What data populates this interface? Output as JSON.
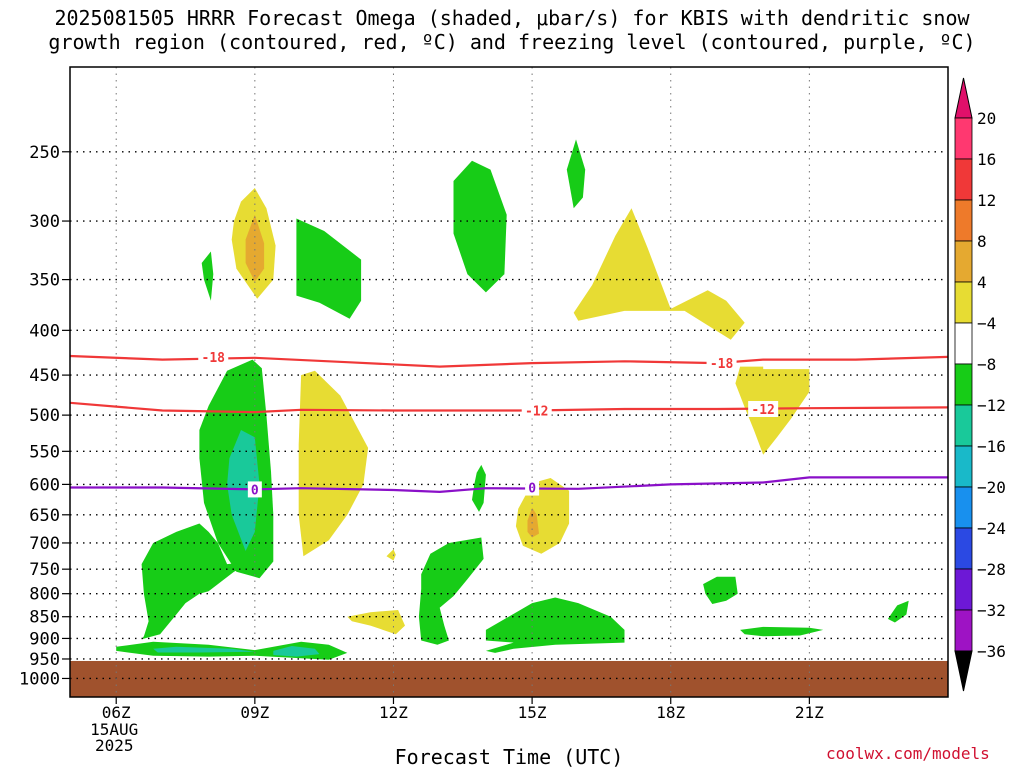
{
  "title": {
    "line1": "2025081505 HRRR Forecast Omega (shaded, μbar/s) for KBIS with dendritic snow",
    "line2": "growth region (contoured, red, ºC) and freezing level (contoured, purple, ºC)"
  },
  "credit": "coolwx.com/models",
  "chart_data": {
    "type": "heatmap",
    "xlabel": "Forecast Time (UTC)",
    "ylabel": "",
    "x_ticks": [
      "06Z",
      "09Z",
      "12Z",
      "15Z",
      "18Z",
      "21Z"
    ],
    "x_tick_hours": [
      6,
      9,
      12,
      15,
      18,
      21
    ],
    "x_date_lines": [
      "15AUG",
      "2025"
    ],
    "xlim_hours": [
      5,
      24
    ],
    "y_ticks": [
      250,
      300,
      350,
      400,
      450,
      500,
      550,
      600,
      650,
      700,
      750,
      800,
      850,
      900,
      950,
      1000
    ],
    "y_scale": "log",
    "ylim_hpa": [
      200,
      1050
    ],
    "grid": true,
    "ground_top_hpa": 955,
    "colorbar": {
      "labels": [
        "20",
        "16",
        "12",
        "8",
        "4",
        "−4",
        "−8",
        "−12",
        "−16",
        "−20",
        "−24",
        "−28",
        "−32",
        "−36"
      ],
      "colors": [
        "#ff3870",
        "#f03838",
        "#ee7a2a",
        "#e5a930",
        "#e7dc33",
        "#ffffff",
        "#17cc17",
        "#19c99a",
        "#19b9c9",
        "#1890ee",
        "#2b49e3",
        "#6d18d6",
        "#9e13c4",
        "#a8a8a8",
        "#000000"
      ],
      "top_arrow_color": "#e0106a",
      "bottom_arrow_color": "#000000"
    },
    "contours": [
      {
        "label": "-18",
        "color": "#f03838",
        "points": [
          [
            5.0,
            428
          ],
          [
            7.0,
            432
          ],
          [
            9.0,
            430
          ],
          [
            11.0,
            435
          ],
          [
            13.0,
            440
          ],
          [
            15.0,
            436
          ],
          [
            17.0,
            434
          ],
          [
            19.0,
            436
          ],
          [
            20.0,
            432
          ],
          [
            22.0,
            432
          ],
          [
            24.0,
            429
          ]
        ],
        "label_at": [
          [
            8.1,
            429
          ],
          [
            19.1,
            436
          ]
        ]
      },
      {
        "label": "-12",
        "color": "#f03838",
        "points": [
          [
            5.0,
            484
          ],
          [
            7.0,
            494
          ],
          [
            9.0,
            496
          ],
          [
            10.0,
            493
          ],
          [
            12.0,
            494
          ],
          [
            15.0,
            494
          ],
          [
            17.0,
            492
          ],
          [
            19.0,
            492
          ],
          [
            21.0,
            491
          ],
          [
            24.0,
            490
          ]
        ],
        "label_at": [
          [
            15.1,
            494
          ],
          [
            20.0,
            492
          ]
        ]
      },
      {
        "label": "0",
        "color": "#8a10c8",
        "points": [
          [
            5.0,
            605
          ],
          [
            7.0,
            605
          ],
          [
            9.0,
            608
          ],
          [
            10.0,
            606
          ],
          [
            12.0,
            609
          ],
          [
            13.0,
            612
          ],
          [
            14.0,
            606
          ],
          [
            16.0,
            607
          ],
          [
            18.0,
            600
          ],
          [
            20.0,
            597
          ],
          [
            21.0,
            589
          ],
          [
            24.0,
            589
          ]
        ],
        "label_at": [
          [
            9.0,
            608
          ],
          [
            15.0,
            605
          ]
        ]
      }
    ],
    "omega_regions": [
      {
        "value": 6,
        "points": [
          [
            8.55,
            300
          ],
          [
            8.7,
            285
          ],
          [
            9.0,
            275
          ],
          [
            9.25,
            290
          ],
          [
            9.45,
            320
          ],
          [
            9.4,
            350
          ],
          [
            9.05,
            368
          ],
          [
            8.6,
            340
          ],
          [
            8.5,
            315
          ]
        ]
      },
      {
        "value": 10,
        "points": [
          [
            8.8,
            315
          ],
          [
            9.0,
            295
          ],
          [
            9.2,
            318
          ],
          [
            9.2,
            340
          ],
          [
            9.0,
            352
          ],
          [
            8.8,
            335
          ]
        ]
      },
      {
        "value": -6,
        "points": [
          [
            7.85,
            335
          ],
          [
            8.05,
            325
          ],
          [
            8.1,
            345
          ],
          [
            8.05,
            370
          ],
          [
            7.9,
            350
          ]
        ]
      },
      {
        "value": -6,
        "points": [
          [
            9.9,
            298
          ],
          [
            10.5,
            308
          ],
          [
            11.3,
            332
          ],
          [
            11.3,
            370
          ],
          [
            11.05,
            388
          ],
          [
            10.4,
            372
          ],
          [
            9.9,
            365
          ],
          [
            9.9,
            330
          ]
        ]
      },
      {
        "value": -6,
        "points": [
          [
            13.3,
            270
          ],
          [
            13.7,
            256
          ],
          [
            14.1,
            262
          ],
          [
            14.45,
            295
          ],
          [
            14.4,
            345
          ],
          [
            14.0,
            362
          ],
          [
            13.6,
            345
          ],
          [
            13.3,
            310
          ]
        ]
      },
      {
        "value": -6,
        "points": [
          [
            15.75,
            262
          ],
          [
            15.95,
            242
          ],
          [
            16.15,
            262
          ],
          [
            16.1,
            282
          ],
          [
            15.9,
            290
          ]
        ]
      },
      {
        "value": 6,
        "points": [
          [
            16.3,
            355
          ],
          [
            16.8,
            312
          ],
          [
            17.15,
            290
          ],
          [
            17.5,
            322
          ],
          [
            18.0,
            378
          ],
          [
            18.8,
            360
          ],
          [
            19.2,
            370
          ],
          [
            19.6,
            392
          ],
          [
            19.3,
            410
          ],
          [
            18.3,
            380
          ],
          [
            17.0,
            380
          ],
          [
            16.0,
            390
          ],
          [
            15.9,
            382
          ]
        ]
      },
      {
        "value": -6,
        "points": [
          [
            6.55,
            902
          ],
          [
            6.95,
            890
          ],
          [
            7.3,
            845
          ],
          [
            7.5,
            820
          ],
          [
            7.8,
            800
          ],
          [
            8.0,
            795
          ],
          [
            8.2,
            780
          ],
          [
            8.55,
            755
          ],
          [
            9.0,
            735
          ],
          [
            8.4,
            740
          ],
          [
            8.2,
            700
          ],
          [
            8.0,
            680
          ],
          [
            7.8,
            665
          ],
          [
            7.3,
            680
          ],
          [
            6.8,
            700
          ],
          [
            6.55,
            740
          ],
          [
            6.6,
            800
          ],
          [
            6.7,
            860
          ],
          [
            6.6,
            895
          ]
        ]
      },
      {
        "value": -6,
        "points": [
          [
            7.8,
            520
          ],
          [
            8.0,
            488
          ],
          [
            8.4,
            445
          ],
          [
            8.95,
            432
          ],
          [
            9.15,
            442
          ],
          [
            9.25,
            500
          ],
          [
            9.35,
            580
          ],
          [
            9.4,
            650
          ],
          [
            9.4,
            735
          ],
          [
            9.1,
            768
          ],
          [
            8.6,
            755
          ],
          [
            8.2,
            700
          ],
          [
            7.9,
            630
          ],
          [
            7.8,
            560
          ]
        ]
      },
      {
        "value": -6,
        "points": [
          [
            6.0,
            920
          ],
          [
            6.8,
            908
          ],
          [
            8.0,
            915
          ],
          [
            9.0,
            928
          ],
          [
            10.0,
            908
          ],
          [
            10.6,
            915
          ],
          [
            11.0,
            935
          ],
          [
            10.6,
            952
          ],
          [
            9.0,
            942
          ],
          [
            8.0,
            944
          ],
          [
            6.8,
            942
          ],
          [
            6.0,
            930
          ]
        ]
      },
      {
        "value": -10,
        "points": [
          [
            8.45,
            560
          ],
          [
            8.7,
            520
          ],
          [
            9.0,
            530
          ],
          [
            9.1,
            600
          ],
          [
            9.0,
            680
          ],
          [
            8.8,
            715
          ],
          [
            8.5,
            650
          ],
          [
            8.4,
            600
          ]
        ]
      },
      {
        "value": -10,
        "points": [
          [
            6.8,
            925
          ],
          [
            7.3,
            920
          ],
          [
            8.5,
            925
          ],
          [
            9.0,
            932
          ],
          [
            7.8,
            934
          ],
          [
            6.9,
            934
          ]
        ]
      },
      {
        "value": -10,
        "points": [
          [
            9.4,
            930
          ],
          [
            9.8,
            918
          ],
          [
            10.3,
            925
          ],
          [
            10.4,
            938
          ],
          [
            9.9,
            944
          ],
          [
            9.4,
            940
          ]
        ]
      },
      {
        "value": 6,
        "points": [
          [
            9.95,
            540
          ],
          [
            10.0,
            450
          ],
          [
            10.3,
            445
          ],
          [
            10.85,
            475
          ],
          [
            11.45,
            545
          ],
          [
            11.35,
            600
          ],
          [
            11.0,
            650
          ],
          [
            10.6,
            695
          ],
          [
            10.05,
            725
          ],
          [
            9.95,
            650
          ]
        ]
      },
      {
        "value": 6,
        "points": [
          [
            11.0,
            850
          ],
          [
            11.5,
            840
          ],
          [
            12.1,
            835
          ],
          [
            12.25,
            870
          ],
          [
            12.05,
            890
          ],
          [
            11.5,
            870
          ],
          [
            11.1,
            860
          ]
        ]
      },
      {
        "value": 6,
        "points": [
          [
            11.9,
            720
          ],
          [
            12.0,
            712
          ],
          [
            12.05,
            722
          ],
          [
            12.0,
            733
          ],
          [
            11.85,
            725
          ]
        ]
      },
      {
        "value": -6,
        "points": [
          [
            13.8,
            582
          ],
          [
            13.9,
            570
          ],
          [
            14.0,
            585
          ],
          [
            13.95,
            630
          ],
          [
            13.85,
            645
          ],
          [
            13.7,
            625
          ],
          [
            13.75,
            600
          ]
        ]
      },
      {
        "value": -6,
        "points": [
          [
            12.6,
            760
          ],
          [
            12.8,
            720
          ],
          [
            13.2,
            700
          ],
          [
            13.9,
            690
          ],
          [
            13.95,
            730
          ],
          [
            13.6,
            770
          ],
          [
            13.3,
            805
          ],
          [
            13.0,
            830
          ],
          [
            13.1,
            870
          ],
          [
            13.2,
            905
          ],
          [
            12.95,
            915
          ],
          [
            12.6,
            905
          ],
          [
            12.55,
            850
          ],
          [
            12.6,
            790
          ]
        ]
      },
      {
        "value": -6,
        "points": [
          [
            14.0,
            880
          ],
          [
            15.0,
            820
          ],
          [
            15.5,
            808
          ],
          [
            16.0,
            820
          ],
          [
            16.7,
            850
          ],
          [
            17.0,
            880
          ],
          [
            17.0,
            910
          ],
          [
            15.5,
            915
          ],
          [
            14.6,
            925
          ],
          [
            14.2,
            935
          ],
          [
            14.0,
            930
          ],
          [
            14.6,
            910
          ],
          [
            14.0,
            905
          ]
        ]
      },
      {
        "value": 6,
        "points": [
          [
            14.7,
            640
          ],
          [
            15.0,
            598
          ],
          [
            15.4,
            590
          ],
          [
            15.8,
            610
          ],
          [
            15.8,
            665
          ],
          [
            15.6,
            700
          ],
          [
            15.2,
            720
          ],
          [
            14.8,
            705
          ],
          [
            14.65,
            670
          ]
        ]
      },
      {
        "value": 10,
        "points": [
          [
            14.9,
            660
          ],
          [
            15.0,
            638
          ],
          [
            15.1,
            650
          ],
          [
            15.15,
            683
          ],
          [
            15.0,
            690
          ],
          [
            14.9,
            680
          ]
        ]
      },
      {
        "value": 6,
        "points": [
          [
            19.4,
            460
          ],
          [
            19.5,
            440
          ],
          [
            20.0,
            440
          ],
          [
            20.0,
            443
          ],
          [
            21.0,
            443
          ],
          [
            21.0,
            470
          ],
          [
            20.6,
            505
          ],
          [
            20.3,
            530
          ],
          [
            20.0,
            555
          ],
          [
            19.8,
            520
          ],
          [
            19.6,
            490
          ]
        ]
      },
      {
        "value": -6,
        "points": [
          [
            18.7,
            780
          ],
          [
            19.0,
            765
          ],
          [
            19.4,
            765
          ],
          [
            19.45,
            800
          ],
          [
            19.2,
            815
          ],
          [
            18.9,
            822
          ],
          [
            18.75,
            800
          ]
        ]
      },
      {
        "value": -6,
        "points": [
          [
            19.5,
            880
          ],
          [
            20.0,
            873
          ],
          [
            21.0,
            875
          ],
          [
            21.3,
            880
          ],
          [
            20.8,
            893
          ],
          [
            20.0,
            895
          ],
          [
            19.6,
            890
          ]
        ]
      },
      {
        "value": -6,
        "points": [
          [
            22.7,
            855
          ],
          [
            22.9,
            825
          ],
          [
            23.15,
            815
          ],
          [
            23.1,
            845
          ],
          [
            22.85,
            863
          ]
        ]
      }
    ]
  }
}
